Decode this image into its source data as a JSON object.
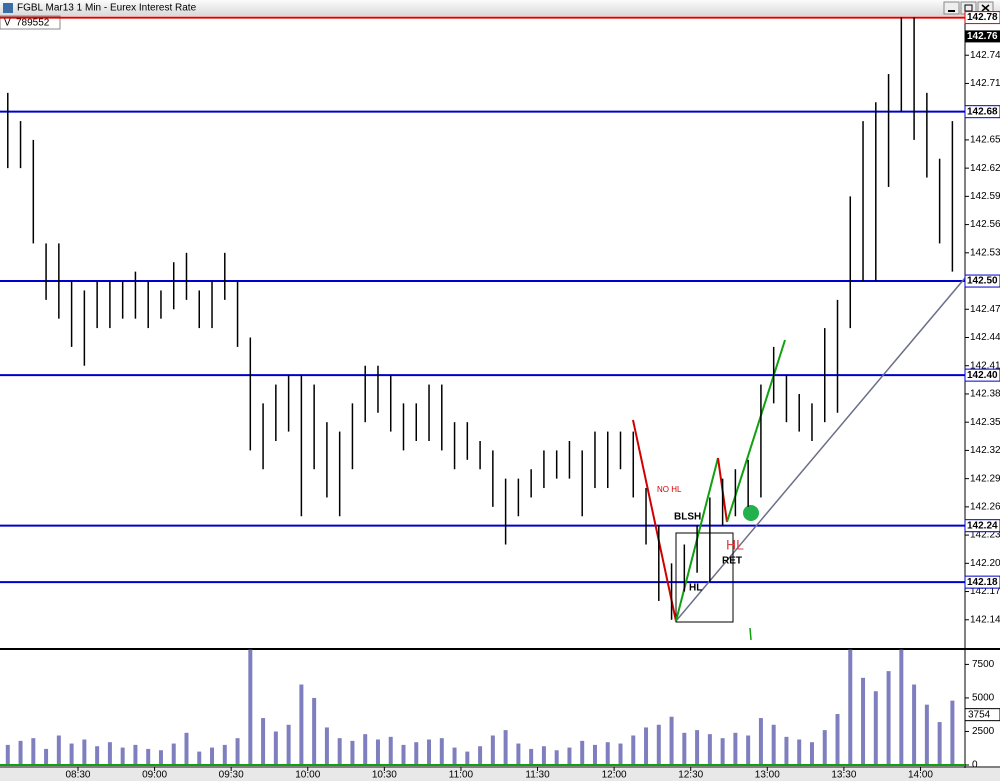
{
  "window": {
    "title": "FGBL Mar13 1 Min - Eurex Interest Rate"
  },
  "chart_data": [
    {
      "type": "hl-bar",
      "x": [
        "08:00",
        "08:05",
        "08:10",
        "08:15",
        "08:20",
        "08:25",
        "08:30",
        "08:35",
        "08:40",
        "08:45",
        "08:50",
        "08:55",
        "09:00",
        "09:05",
        "09:10",
        "09:15",
        "09:20",
        "09:25",
        "09:30",
        "09:35",
        "09:40",
        "09:45",
        "09:50",
        "09:55",
        "10:00",
        "10:05",
        "10:10",
        "10:15",
        "10:20",
        "10:25",
        "10:30",
        "10:35",
        "10:40",
        "10:45",
        "10:50",
        "10:55",
        "11:00",
        "11:05",
        "11:10",
        "11:15",
        "11:20",
        "11:25",
        "11:30",
        "11:35",
        "11:40",
        "11:45",
        "11:50",
        "11:55",
        "12:00",
        "12:05",
        "12:10",
        "12:15",
        "12:20",
        "12:25",
        "12:30",
        "12:35",
        "12:40",
        "12:45",
        "12:50",
        "12:55",
        "13:00",
        "13:05",
        "13:10",
        "13:15",
        "13:20",
        "13:25",
        "13:30",
        "13:35",
        "13:40",
        "13:45",
        "13:50",
        "13:55",
        "14:00",
        "14:05",
        "14:10"
      ],
      "high": [
        142.7,
        142.67,
        142.65,
        142.54,
        142.54,
        142.5,
        142.49,
        142.5,
        142.5,
        142.5,
        142.51,
        142.5,
        142.49,
        142.52,
        142.53,
        142.49,
        142.5,
        142.53,
        142.5,
        142.44,
        142.37,
        142.39,
        142.4,
        142.4,
        142.39,
        142.35,
        142.34,
        142.37,
        142.41,
        142.41,
        142.4,
        142.37,
        142.37,
        142.39,
        142.39,
        142.35,
        142.35,
        142.33,
        142.32,
        142.29,
        142.29,
        142.3,
        142.32,
        142.32,
        142.33,
        142.32,
        142.34,
        142.34,
        142.34,
        142.34,
        142.28,
        142.24,
        142.2,
        142.22,
        142.24,
        142.27,
        142.29,
        142.3,
        142.31,
        142.39,
        142.43,
        142.4,
        142.38,
        142.37,
        142.45,
        142.48,
        142.59,
        142.67,
        142.69,
        142.72,
        142.78,
        142.78,
        142.7,
        142.63,
        142.67
      ],
      "low": [
        142.62,
        142.62,
        142.54,
        142.48,
        142.46,
        142.43,
        142.41,
        142.45,
        142.45,
        142.46,
        142.46,
        142.45,
        142.46,
        142.47,
        142.48,
        142.45,
        142.45,
        142.48,
        142.43,
        142.32,
        142.3,
        142.33,
        142.34,
        142.25,
        142.3,
        142.27,
        142.25,
        142.3,
        142.35,
        142.36,
        142.34,
        142.32,
        142.33,
        142.33,
        142.32,
        142.3,
        142.31,
        142.3,
        142.26,
        142.22,
        142.25,
        142.27,
        142.28,
        142.29,
        142.29,
        142.25,
        142.28,
        142.28,
        142.3,
        142.27,
        142.22,
        142.16,
        142.14,
        142.17,
        142.19,
        142.18,
        142.24,
        142.25,
        142.26,
        142.27,
        142.37,
        142.35,
        142.34,
        142.33,
        142.35,
        142.36,
        142.45,
        142.5,
        142.5,
        142.6,
        142.68,
        142.65,
        142.61,
        142.54,
        142.51
      ],
      "color": "#000000",
      "ylim": [
        142.11,
        142.787
      ],
      "yticks": [
        142.14,
        142.17,
        {
          "value": 142.2,
          "label": "142.20"
        },
        142.23,
        142.26,
        142.29,
        142.32,
        142.35,
        142.38,
        142.41,
        142.44,
        142.47,
        142.53,
        142.56,
        142.59,
        142.62,
        142.65,
        142.71,
        142.74
      ],
      "xticks": [
        "08:30",
        "09:00",
        "09:30",
        "10:00",
        "10:30",
        "11:00",
        "11:30",
        "12:00",
        "12:30",
        "13:00",
        "13:30",
        "14:00"
      ],
      "levels": [
        {
          "value": 142.78,
          "color": "#e00000"
        },
        {
          "value": 142.68,
          "color": "#0000cc"
        },
        {
          "value": 142.5,
          "label": "142.50",
          "color": "#0000cc"
        },
        {
          "value": 142.4,
          "label": "142.40",
          "color": "#0000cc"
        },
        {
          "value": 142.24,
          "color": "#0000cc"
        },
        {
          "value": 142.18,
          "color": "#0000cc"
        }
      ],
      "last_price": 142.76,
      "annotations": [
        "NO HL",
        "BLSH",
        "HL",
        "RET",
        "HL"
      ]
    },
    {
      "type": "bar",
      "legend_label": "V",
      "legend_value": 789552,
      "values": [
        1500,
        1800,
        2000,
        1200,
        2200,
        1600,
        1900,
        1400,
        1700,
        1300,
        1500,
        1200,
        1100,
        1600,
        2400,
        1000,
        1300,
        1500,
        2000,
        8600,
        3500,
        2500,
        3000,
        6000,
        5000,
        2800,
        2000,
        1800,
        2300,
        1900,
        2100,
        1500,
        1700,
        1900,
        2000,
        1300,
        1000,
        1400,
        2200,
        2600,
        1600,
        1200,
        1400,
        1100,
        1300,
        1800,
        1500,
        1700,
        1600,
        2200,
        2800,
        3000,
        3600,
        2400,
        2600,
        2300,
        2000,
        2400,
        2200,
        3500,
        3000,
        2100,
        1900,
        1700,
        2600,
        3800,
        8600,
        6500,
        5500,
        7000,
        8600,
        6000,
        4500,
        3200,
        4800
      ],
      "color": "#7f7fc0",
      "ylim": [
        0,
        8500
      ],
      "yticks": [
        0,
        2500,
        5000,
        7500
      ],
      "last_value": 3754
    }
  ]
}
